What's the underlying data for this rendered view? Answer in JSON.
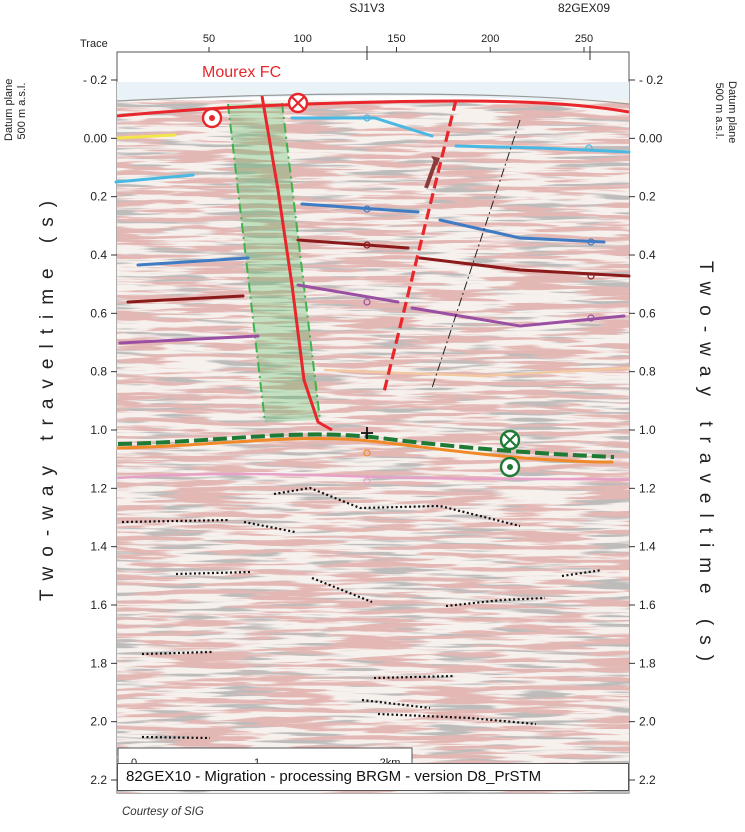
{
  "top_labels": {
    "well": "SJ1V3",
    "crossing_line": "82GEX09",
    "trace_title": "Trace"
  },
  "trace_ticks": [
    {
      "label": "50",
      "trace": 50
    },
    {
      "label": "100",
      "trace": 100
    },
    {
      "label": "150",
      "trace": 150
    },
    {
      "label": "200",
      "trace": 200
    },
    {
      "label": "250",
      "trace": 250
    }
  ],
  "time_ticks": [
    {
      "label": "- 0.2",
      "t": -0.2
    },
    {
      "label": "0.00",
      "t": 0.0
    },
    {
      "label": "0.2",
      "t": 0.2
    },
    {
      "label": "0.4",
      "t": 0.4
    },
    {
      "label": "0.6",
      "t": 0.6
    },
    {
      "label": "0.8",
      "t": 0.8
    },
    {
      "label": "1.0",
      "t": 1.0
    },
    {
      "label": "1.2",
      "t": 1.2
    },
    {
      "label": "1.4",
      "t": 1.4
    },
    {
      "label": "1.6",
      "t": 1.6
    },
    {
      "label": "1.8",
      "t": 1.8
    },
    {
      "label": "2.0",
      "t": 2.0
    },
    {
      "label": "2.2",
      "t": 2.2
    }
  ],
  "datum": {
    "line1": "Datum plane",
    "line2": "500 m a.s.l."
  },
  "axis_title": "Two-way traveltime (s)",
  "fault_label": "Mourex FC",
  "scale_bar": {
    "labels": [
      "0",
      "1",
      "2km"
    ]
  },
  "caption": "82GEX10 - Migration - processing BRGM - version D8_PrSTM",
  "courtesy": "Courtesy of SIG",
  "colors": {
    "fault": "#e8262b",
    "green_zone": "#3db44b",
    "cyan": "#49b8e3",
    "blue": "#3f7cc3",
    "dark_red": "#8b1a1a",
    "purple": "#9b4fa3",
    "orange": "#f08a28",
    "pink": "#e6a0c9",
    "yellow": "#f2e64a",
    "peach": "#f3c9a0",
    "dark_green": "#1e7a34"
  }
}
